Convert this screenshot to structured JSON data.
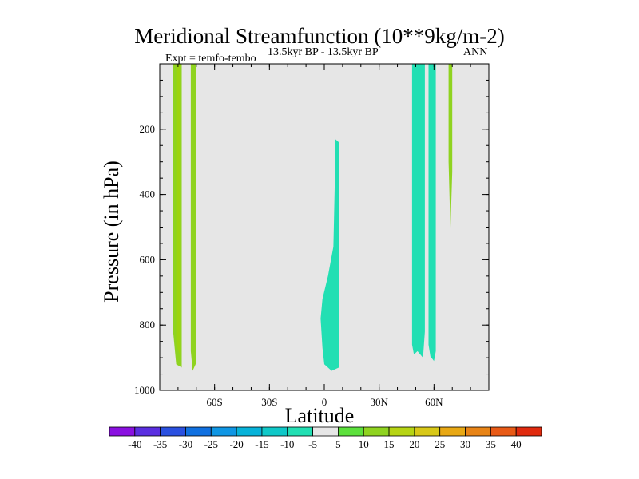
{
  "chart_data": {
    "type": "contour",
    "title": "Meridional Streamfunction (10**9kg/m-2)",
    "subtitle_left": "Expt = temfo-tembo",
    "subtitle_center": "13.5kyr BP - 13.5kyr BP",
    "subtitle_right": "ANN",
    "xlabel": "Latitude",
    "ylabel": "Pressure (in hPa)",
    "xlim": [
      -90,
      90
    ],
    "ylim": [
      1000,
      0
    ],
    "x_ticks": [
      {
        "value": -60,
        "label": "60S"
      },
      {
        "value": -30,
        "label": "30S"
      },
      {
        "value": 0,
        "label": "0"
      },
      {
        "value": 30,
        "label": "30N"
      },
      {
        "value": 60,
        "label": "60N"
      }
    ],
    "y_ticks": [
      {
        "value": 200,
        "label": "200"
      },
      {
        "value": 400,
        "label": "400"
      },
      {
        "value": 600,
        "label": "600"
      },
      {
        "value": 800,
        "label": "800"
      },
      {
        "value": 1000,
        "label": "1000"
      }
    ],
    "background_color": "#e6e6e6",
    "regions": [
      {
        "name": "sh-band-1",
        "level": "5 to 10",
        "color": "#8fd320",
        "outline": [
          [
            -83,
            0
          ],
          [
            -78,
            0
          ],
          [
            -78,
            930
          ],
          [
            -81,
            920
          ],
          [
            -83,
            800
          ]
        ]
      },
      {
        "name": "sh-band-1-core",
        "level": "10 to 15",
        "color": "#9dd40e",
        "outline": [
          [
            -81,
            0
          ],
          [
            -79,
            0
          ],
          [
            -79,
            890
          ],
          [
            -81,
            860
          ]
        ]
      },
      {
        "name": "sh-band-2",
        "level": "5 to 10",
        "color": "#8fd320",
        "outline": [
          [
            -73,
            0
          ],
          [
            -70,
            0
          ],
          [
            -70,
            915
          ],
          [
            -72,
            940
          ],
          [
            -73,
            880
          ]
        ]
      },
      {
        "name": "tropical-cell",
        "level": "-10 to -5",
        "color": "#22dfb3",
        "outline": [
          [
            6,
            230
          ],
          [
            8,
            240
          ],
          [
            8,
            930
          ],
          [
            4,
            940
          ],
          [
            0,
            920
          ],
          [
            -1,
            870
          ],
          [
            -2,
            780
          ],
          [
            -1,
            720
          ],
          [
            2,
            650
          ],
          [
            5,
            560
          ],
          [
            6,
            300
          ]
        ]
      },
      {
        "name": "nh-band-1",
        "level": "-10 to -5",
        "color": "#22dfb3",
        "outline": [
          [
            48,
            0
          ],
          [
            55,
            0
          ],
          [
            55,
            820
          ],
          [
            54,
            900
          ],
          [
            51,
            880
          ],
          [
            49,
            890
          ],
          [
            48,
            860
          ]
        ]
      },
      {
        "name": "nh-band-2",
        "level": "-10 to -5",
        "color": "#22dfb3",
        "outline": [
          [
            57,
            0
          ],
          [
            61,
            0
          ],
          [
            61,
            880
          ],
          [
            60,
            910
          ],
          [
            58,
            895
          ],
          [
            57,
            860
          ]
        ]
      },
      {
        "name": "nh-band-3",
        "level": "5 to 10",
        "color": "#8fd320",
        "outline": [
          [
            68,
            0
          ],
          [
            70,
            0
          ],
          [
            70,
            330
          ],
          [
            69,
            510
          ],
          [
            68,
            300
          ]
        ]
      }
    ],
    "colorbar": {
      "labels": [
        "-40",
        "-35",
        "-30",
        "-25",
        "-20",
        "-15",
        "-10",
        "-5",
        "5",
        "10",
        "15",
        "20",
        "25",
        "30",
        "35",
        "40"
      ],
      "colors": [
        "#8a10e0",
        "#5a2ee0",
        "#2a50e0",
        "#1070e0",
        "#0f96e4",
        "#07b2d9",
        "#0fc8c8",
        "#22dfb3",
        "#e6e6e6",
        "#5ce03c",
        "#8fd320",
        "#b6d414",
        "#d8c818",
        "#e8a814",
        "#e88416",
        "#e85a16",
        "#e02a0e"
      ]
    }
  }
}
